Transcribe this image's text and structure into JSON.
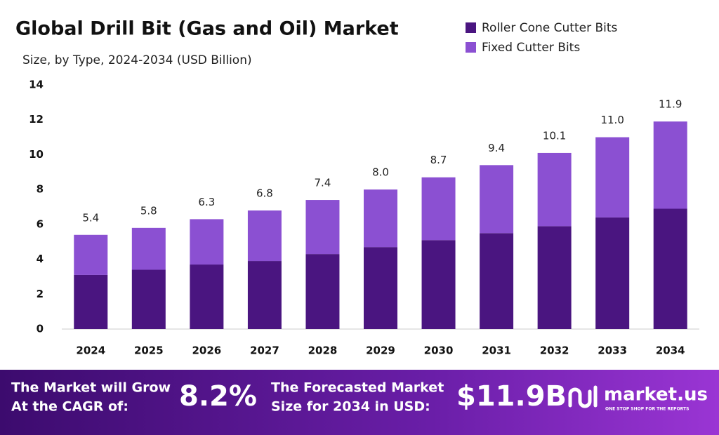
{
  "chart_data": {
    "type": "stacked_bar",
    "title": "Global Drill Bit (Gas and Oil) Market",
    "subtitle": "Size, by Type, 2024-2034 (USD Billion)",
    "categories": [
      "2024",
      "2025",
      "2026",
      "2027",
      "2028",
      "2029",
      "2030",
      "2031",
      "2032",
      "2033",
      "2034"
    ],
    "series": [
      {
        "name": "Roller Cone Cutter Bits",
        "color": "#4a1580",
        "values": [
          3.1,
          3.4,
          3.7,
          3.9,
          4.3,
          4.7,
          5.1,
          5.5,
          5.9,
          6.4,
          6.9
        ]
      },
      {
        "name": "Fixed Cutter Bits",
        "color": "#8b50d2",
        "values": [
          2.3,
          2.4,
          2.6,
          2.9,
          3.1,
          3.3,
          3.6,
          3.9,
          4.2,
          4.6,
          5.0
        ]
      }
    ],
    "totals": [
      5.4,
      5.8,
      6.3,
      6.8,
      7.4,
      8.0,
      8.7,
      9.4,
      10.1,
      11.0,
      11.9
    ],
    "totals_labels": [
      "5.4",
      "5.8",
      "6.3",
      "6.8",
      "7.4",
      "8.0",
      "8.7",
      "9.4",
      "10.1",
      "11.0",
      "11.9"
    ],
    "ylim": [
      0,
      14
    ],
    "yticks": [
      0,
      2,
      4,
      6,
      8,
      10,
      12,
      14
    ],
    "grid": false,
    "legend": "top-right"
  },
  "banner": {
    "cagr_label": [
      "The Market will Grow",
      "At the CAGR of:"
    ],
    "cagr_value": "8.2%",
    "forecast_label": [
      "The Forecasted Market",
      "Size for 2034 in USD:"
    ],
    "forecast_value": "$11.9B",
    "brand": "market.us",
    "tagline": "ONE STOP SHOP FOR THE REPORTS"
  }
}
